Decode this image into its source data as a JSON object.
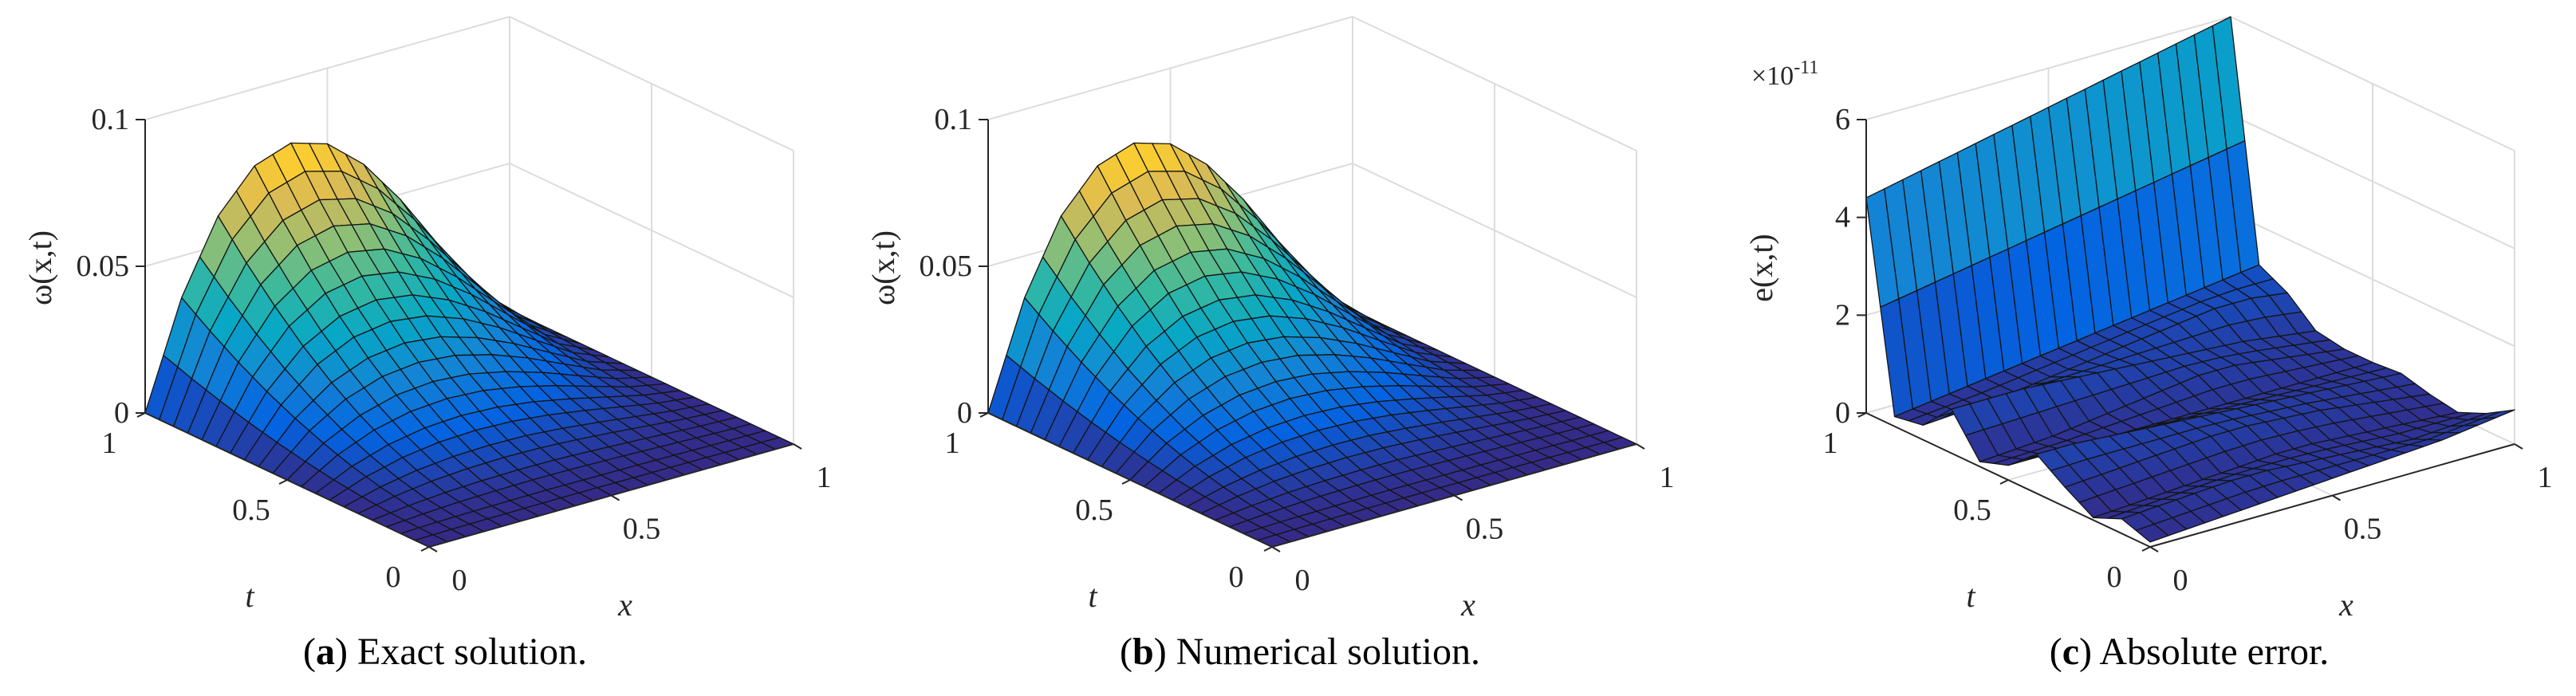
{
  "chart_data": [
    {
      "type": "surface",
      "id": "a",
      "caption_label": "a",
      "caption_text": "Exact solution.",
      "xlabel": "x",
      "ylabel": "t",
      "zlabel": "ω(x,t)",
      "xlim": [
        0,
        1
      ],
      "ylim": [
        0,
        1
      ],
      "zlim": [
        0,
        0.1
      ],
      "xticks": [
        "0",
        "0.5",
        "1"
      ],
      "yticks": [
        "0",
        "0.5",
        "1"
      ],
      "zticks": [
        "0",
        "0.05",
        "0.1"
      ],
      "zticks_values": [
        0,
        0.05,
        0.1
      ],
      "multiplier": "",
      "colormap": "parula",
      "clim": [
        0,
        0.085
      ],
      "grid_x": [
        0,
        0.1,
        0.2,
        0.3,
        0.4,
        0.5,
        0.6,
        0.7,
        0.8,
        0.9,
        1
      ],
      "grid_t": [
        0,
        0.1,
        0.2,
        0.3,
        0.4,
        0.5,
        0.6,
        0.7,
        0.8,
        0.9,
        1
      ],
      "z_grid": [
        [
          0,
          0,
          0,
          0,
          0,
          0,
          0,
          0,
          0,
          0,
          0
        ],
        [
          0,
          0.0004,
          0.0006,
          0.0007,
          0.0008,
          0.0007,
          0.0006,
          0.0005,
          0.0003,
          0.0001,
          0
        ],
        [
          0,
          0.0014,
          0.0024,
          0.0029,
          0.0031,
          0.003,
          0.0025,
          0.0019,
          0.0012,
          0.0005,
          0
        ],
        [
          0,
          0.0032,
          0.0054,
          0.0066,
          0.007,
          0.0067,
          0.0057,
          0.0043,
          0.0027,
          0.0011,
          0
        ],
        [
          0,
          0.0057,
          0.0096,
          0.0118,
          0.0125,
          0.0119,
          0.0102,
          0.0077,
          0.0048,
          0.0019,
          0
        ],
        [
          0,
          0.009,
          0.015,
          0.0184,
          0.0195,
          0.0186,
          0.0159,
          0.0121,
          0.0075,
          0.003,
          0
        ],
        [
          0,
          0.0129,
          0.0216,
          0.0265,
          0.0281,
          0.0267,
          0.0229,
          0.0174,
          0.0108,
          0.0043,
          0
        ],
        [
          0,
          0.0175,
          0.0294,
          0.0361,
          0.0382,
          0.0364,
          0.0312,
          0.0237,
          0.0147,
          0.0058,
          0
        ],
        [
          0,
          0.0229,
          0.0385,
          0.0472,
          0.0499,
          0.0475,
          0.0408,
          0.0309,
          0.0192,
          0.0076,
          0
        ],
        [
          0,
          0.029,
          0.0487,
          0.0597,
          0.0632,
          0.0601,
          0.0516,
          0.0391,
          0.0243,
          0.0096,
          0
        ],
        [
          0,
          0.0358,
          0.0601,
          0.0737,
          0.078,
          0.0742,
          0.0637,
          0.0483,
          0.03,
          0.0119,
          0
        ]
      ]
    },
    {
      "type": "surface",
      "id": "b",
      "caption_label": "b",
      "caption_text": "Numerical solution.",
      "xlabel": "x",
      "ylabel": "t",
      "zlabel": "ω(x,t)",
      "xlim": [
        0,
        1
      ],
      "ylim": [
        0,
        1
      ],
      "zlim": [
        0,
        0.1
      ],
      "xticks": [
        "0",
        "0.5",
        "1"
      ],
      "yticks": [
        "0",
        "0.5",
        "1"
      ],
      "zticks": [
        "0",
        "0.05",
        "0.1"
      ],
      "zticks_values": [
        0,
        0.05,
        0.1
      ],
      "multiplier": "",
      "colormap": "parula",
      "clim": [
        0,
        0.085
      ],
      "grid_x": [
        0,
        0.1,
        0.2,
        0.3,
        0.4,
        0.5,
        0.6,
        0.7,
        0.8,
        0.9,
        1
      ],
      "grid_t": [
        0,
        0.1,
        0.2,
        0.3,
        0.4,
        0.5,
        0.6,
        0.7,
        0.8,
        0.9,
        1
      ],
      "z_grid": [
        [
          0,
          0,
          0,
          0,
          0,
          0,
          0,
          0,
          0,
          0,
          0
        ],
        [
          0,
          0.0004,
          0.0006,
          0.0007,
          0.0008,
          0.0007,
          0.0006,
          0.0005,
          0.0003,
          0.0001,
          0
        ],
        [
          0,
          0.0014,
          0.0024,
          0.0029,
          0.0031,
          0.003,
          0.0025,
          0.0019,
          0.0012,
          0.0005,
          0
        ],
        [
          0,
          0.0032,
          0.0054,
          0.0066,
          0.007,
          0.0067,
          0.0057,
          0.0043,
          0.0027,
          0.0011,
          0
        ],
        [
          0,
          0.0057,
          0.0096,
          0.0118,
          0.0125,
          0.0119,
          0.0102,
          0.0077,
          0.0048,
          0.0019,
          0
        ],
        [
          0,
          0.009,
          0.015,
          0.0184,
          0.0195,
          0.0186,
          0.0159,
          0.0121,
          0.0075,
          0.003,
          0
        ],
        [
          0,
          0.0129,
          0.0216,
          0.0265,
          0.0281,
          0.0267,
          0.0229,
          0.0174,
          0.0108,
          0.0043,
          0
        ],
        [
          0,
          0.0175,
          0.0294,
          0.0361,
          0.0382,
          0.0364,
          0.0312,
          0.0237,
          0.0147,
          0.0058,
          0
        ],
        [
          0,
          0.0229,
          0.0385,
          0.0472,
          0.0499,
          0.0475,
          0.0408,
          0.0309,
          0.0192,
          0.0076,
          0
        ],
        [
          0,
          0.029,
          0.0487,
          0.0597,
          0.0632,
          0.0601,
          0.0516,
          0.0391,
          0.0243,
          0.0096,
          0
        ],
        [
          0,
          0.0358,
          0.0601,
          0.0737,
          0.078,
          0.0742,
          0.0637,
          0.0483,
          0.03,
          0.0119,
          0
        ]
      ]
    },
    {
      "type": "surface",
      "id": "c",
      "caption_label": "c",
      "caption_text": "Absolute error.",
      "xlabel": "x",
      "ylabel": "t",
      "zlabel": "e(x,t)",
      "xlim": [
        0,
        1
      ],
      "ylim": [
        0,
        1
      ],
      "zlim": [
        0,
        6
      ],
      "xticks": [
        "0",
        "0.5",
        "1"
      ],
      "yticks": [
        "0",
        "0.5",
        "1"
      ],
      "zticks": [
        "0",
        "2",
        "4",
        "6"
      ],
      "zticks_values": [
        0,
        2,
        4,
        6
      ],
      "multiplier": "×10",
      "multiplier_exp": "-11",
      "colormap": "parula",
      "clim": [
        0,
        14
      ],
      "grid_x": [
        0,
        0.1,
        0.2,
        0.3,
        0.4,
        0.5,
        0.6,
        0.7,
        0.8,
        0.9,
        1
      ],
      "grid_t": [
        0,
        0.1,
        0.2,
        0.3,
        0.4,
        0.5,
        0.6,
        0.7,
        0.8,
        0.9,
        1
      ],
      "z_grid": [
        [
          0.1,
          0.15,
          0.2,
          0.25,
          0.3,
          0.35,
          0.4,
          0.45,
          0.5,
          0.6,
          0.7
        ],
        [
          0.3,
          0.35,
          0.4,
          0.45,
          0.45,
          0.4,
          0.35,
          0.3,
          0.25,
          0.3,
          0.35
        ],
        [
          0.05,
          0.1,
          0.15,
          0.2,
          0.25,
          0.3,
          0.3,
          0.25,
          0.2,
          0.15,
          0.1
        ],
        [
          0.4,
          0.45,
          0.5,
          0.55,
          0.6,
          0.6,
          0.55,
          0.5,
          0.4,
          0.3,
          0.2
        ],
        [
          0.8,
          0.8,
          0.75,
          0.7,
          0.65,
          0.6,
          0.55,
          0.5,
          0.45,
          0.4,
          0.35
        ],
        [
          0.3,
          0.3,
          0.3,
          0.3,
          0.3,
          0.3,
          0.3,
          0.3,
          0.3,
          0.3,
          0.3
        ],
        [
          0.1,
          0.15,
          0.2,
          0.3,
          0.4,
          0.5,
          0.6,
          0.6,
          0.5,
          0.4,
          0.3
        ],
        [
          0.9,
          0.9,
          0.9,
          0.85,
          0.8,
          0.75,
          0.7,
          0.65,
          0.6,
          0.5,
          0.4
        ],
        [
          0.3,
          0.35,
          0.4,
          0.5,
          0.6,
          0.7,
          0.8,
          0.9,
          1.0,
          1.0,
          0.9
        ],
        [
          0.2,
          0.3,
          0.4,
          0.5,
          0.6,
          0.7,
          0.8,
          0.9,
          1.0,
          1.1,
          1.2
        ],
        [
          4.4,
          4.56,
          4.72,
          4.88,
          5.04,
          5.2,
          5.36,
          5.52,
          5.68,
          5.84,
          6.0
        ]
      ]
    }
  ]
}
